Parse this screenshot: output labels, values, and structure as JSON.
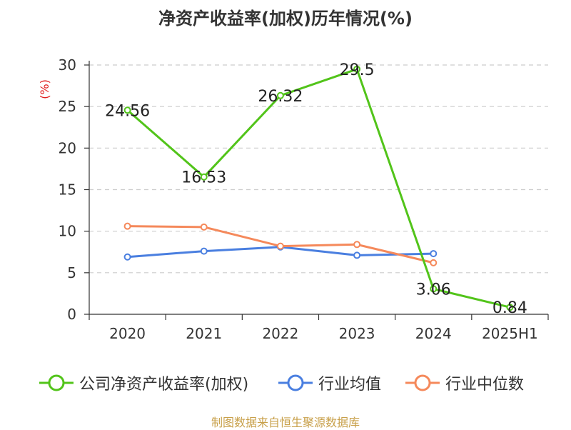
{
  "title": "净资产收益率(加权)历年情况(%)",
  "source": "制图数据来自恒生聚源数据库",
  "chart_data": {
    "type": "line",
    "categories": [
      "2020",
      "2021",
      "2022",
      "2023",
      "2024",
      "2025H1"
    ],
    "ylabel": "(%)",
    "ylim": [
      0,
      30
    ],
    "yticks": [
      0,
      5,
      10,
      15,
      20,
      25,
      30
    ],
    "grid": true,
    "legend_position": "bottom",
    "series": [
      {
        "name": "公司净资产收益率(加权)",
        "color": "#52c41a",
        "values": [
          24.56,
          16.53,
          26.32,
          29.5,
          3.06,
          0.84
        ],
        "labels": [
          "24.56",
          "16.53",
          "26.32",
          "29.5",
          "3.06",
          "0.84"
        ]
      },
      {
        "name": "行业均值",
        "color": "#4a7fe0",
        "values": [
          6.9,
          7.6,
          8.1,
          7.1,
          7.3,
          null
        ]
      },
      {
        "name": "行业中位数",
        "color": "#f5895b",
        "values": [
          10.6,
          10.5,
          8.2,
          8.4,
          6.2,
          null
        ]
      }
    ]
  }
}
